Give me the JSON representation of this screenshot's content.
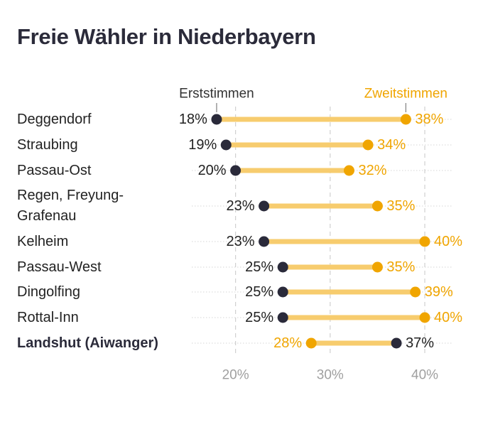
{
  "title": "Freie Wähler in Niederbayern",
  "chart_data": {
    "type": "dumbbell",
    "title": "Freie Wähler in Niederbayern",
    "xlabel": "",
    "ylabel": "",
    "xlim": [
      15,
      43
    ],
    "xticks": [
      20,
      30,
      40
    ],
    "xtick_labels": [
      "20%",
      "30%",
      "40%"
    ],
    "grid": true,
    "colors": {
      "erststimmen": "#2a2a3a",
      "zweitstimmen": "#f0a500",
      "connector": "#f7cc6e",
      "tick": "#a0a0a0"
    },
    "legend": {
      "erststimmen_label": "Erststimmen",
      "zweitstimmen_label": "Zweitstimmen",
      "placement": "top"
    },
    "rows": [
      {
        "name": "Deggendorf",
        "erst": 18,
        "zweit": 38,
        "erst_label": "18%",
        "zweit_label": "38%",
        "bold": false
      },
      {
        "name": "Straubing",
        "erst": 19,
        "zweit": 34,
        "erst_label": "19%",
        "zweit_label": "34%",
        "bold": false
      },
      {
        "name": "Passau-Ost",
        "erst": 20,
        "zweit": 32,
        "erst_label": "20%",
        "zweit_label": "32%",
        "bold": false
      },
      {
        "name": "Regen, Freyung-Grafenau",
        "name_lines": [
          "Regen, Freyung-",
          "Grafenau"
        ],
        "erst": 23,
        "zweit": 35,
        "erst_label": "23%",
        "zweit_label": "35%",
        "bold": false
      },
      {
        "name": "Kelheim",
        "erst": 23,
        "zweit": 40,
        "erst_label": "23%",
        "zweit_label": "40%",
        "bold": false
      },
      {
        "name": "Passau-West",
        "erst": 25,
        "zweit": 35,
        "erst_label": "25%",
        "zweit_label": "35%",
        "bold": false
      },
      {
        "name": "Dingolfing",
        "erst": 25,
        "zweit": 39,
        "erst_label": "25%",
        "zweit_label": "39%",
        "bold": false
      },
      {
        "name": "Rottal-Inn",
        "erst": 25,
        "zweit": 40,
        "erst_label": "25%",
        "zweit_label": "40%",
        "bold": false
      },
      {
        "name": "Landshut (Aiwanger)",
        "erst": 37,
        "zweit": 28,
        "erst_label": "37%",
        "zweit_label": "28%",
        "bold": true
      }
    ]
  }
}
